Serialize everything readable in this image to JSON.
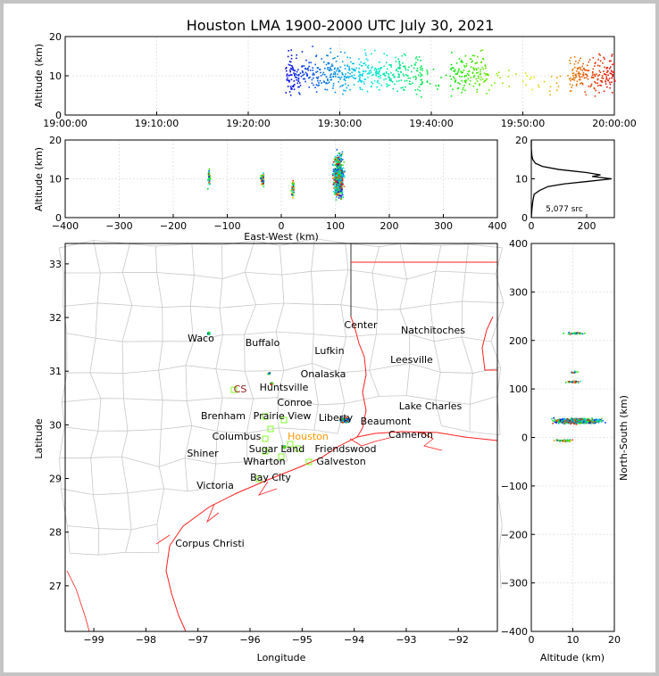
{
  "title": "Houston LMA 1900-2000 UTC July 30, 2021",
  "source_count_label": "5,077 src",
  "colors": {
    "coast_state_lines": "#ff2020",
    "county_lines": "#c8c8c8",
    "station_marker": "#80ff20",
    "houston_label": "#ff9900",
    "cs_label": "#8b1a1a"
  },
  "cities": [
    "Waco",
    "Buffalo",
    "Lufkin",
    "Center",
    "Natchitoches",
    "Leesville",
    "Onalaska",
    "Huntsville",
    "CS",
    "Conroe",
    "Brenham",
    "Prairie View",
    "Liberty",
    "Beaumont",
    "Lake Charles",
    "Cameron",
    "Columbus",
    "Houston",
    "Sugar Land",
    "Friendswood",
    "Shiner",
    "Wharton",
    "Galveston",
    "Bay City",
    "Victoria",
    "Corpus Christi"
  ],
  "chart_data": [
    {
      "type": "scatter",
      "panel": "altitude-vs-time",
      "xlabel": "",
      "ylabel": "Altitude (km)",
      "xlim": [
        "19:00:00",
        "20:00:00"
      ],
      "ylim": [
        0,
        20
      ],
      "xticks": [
        "19:00:00",
        "19:10:00",
        "19:20:00",
        "19:30:00",
        "19:40:00",
        "19:50:00",
        "20:00:00"
      ],
      "yticks": [
        "0",
        "10",
        "20"
      ],
      "activity_periods": [
        {
          "start": "19:24:00",
          "end": "19:39:00",
          "alt_km": [
            5,
            15
          ]
        },
        {
          "start": "19:42:00",
          "end": "19:46:00",
          "alt_km": [
            6,
            13
          ]
        },
        {
          "start": "19:55:00",
          "end": "20:00:00",
          "alt_km": [
            7,
            14
          ]
        }
      ]
    },
    {
      "type": "scatter",
      "panel": "altitude-vs-east-west",
      "xlabel": "East-West (km)",
      "ylabel": "Altitude (km)",
      "xlim": [
        -400,
        400
      ],
      "ylim": [
        0,
        20
      ],
      "xticks": [
        "−400",
        "−300",
        "−200",
        "−100",
        "0",
        "100",
        "200",
        "300",
        "400"
      ],
      "yticks": [
        "0",
        "10",
        "20"
      ]
    },
    {
      "type": "line",
      "panel": "altitude-histogram",
      "xlim": [
        0,
        300
      ],
      "ylim": [
        0,
        20
      ],
      "xticks": [
        "0",
        "200"
      ],
      "yticks": [
        "0",
        "10",
        "20"
      ],
      "x": [
        0,
        2,
        5,
        10,
        30,
        60,
        120,
        200,
        290,
        220,
        250,
        200,
        100,
        40,
        15,
        5,
        2,
        0,
        0
      ],
      "y": [
        0,
        2,
        4,
        6,
        7,
        8,
        8.7,
        9.3,
        10,
        10.6,
        11,
        11.6,
        12.4,
        13.2,
        14,
        15,
        16,
        18,
        20
      ]
    },
    {
      "type": "scatter",
      "panel": "map",
      "xlabel": "Longitude",
      "ylabel": "Latitude",
      "xlim": [
        -99.55,
        -91.25
      ],
      "ylim": [
        26.15,
        33.38
      ],
      "xticks": [
        "−99",
        "−98",
        "−97",
        "−96",
        "−95",
        "−94",
        "−93",
        "−92"
      ],
      "yticks": [
        "27",
        "28",
        "29",
        "30",
        "31",
        "32",
        "33"
      ],
      "clusters": [
        {
          "near": "Liberty/Beaumont",
          "lon": -94.2,
          "lat": 30.1,
          "ew_km": 105,
          "ns_km": 35,
          "alt_km": [
            5,
            17
          ]
        },
        {
          "near": "Waco",
          "lon": -96.8,
          "lat": 31.72,
          "ew_km": -135,
          "ns_km": 216,
          "alt_km": [
            8,
            13
          ]
        },
        {
          "near": "Huntsville",
          "lon": -95.6,
          "lat": 30.78,
          "ew_km": -35,
          "ns_km": 116,
          "alt_km": [
            8,
            12
          ]
        },
        {
          "near": "north of Huntsville",
          "lon": -95.65,
          "lat": 30.97,
          "ew_km": -38,
          "ns_km": 136,
          "alt_km": [
            9,
            11
          ]
        },
        {
          "near": "Houston",
          "lon": -95.35,
          "lat": 29.6,
          "ew_km": 20,
          "ns_km": -5,
          "alt_km": [
            5,
            10
          ]
        }
      ]
    },
    {
      "type": "scatter",
      "panel": "north-south-vs-altitude",
      "xlabel": "Altitude (km)",
      "ylabel": "North-South (km)",
      "xlim": [
        0,
        20
      ],
      "ylim": [
        -400,
        400
      ],
      "xticks": [
        "0",
        "10",
        "20"
      ],
      "yticks": [
        "−400",
        "−300",
        "−200",
        "−100",
        "0",
        "100",
        "200",
        "300",
        "400"
      ]
    }
  ]
}
